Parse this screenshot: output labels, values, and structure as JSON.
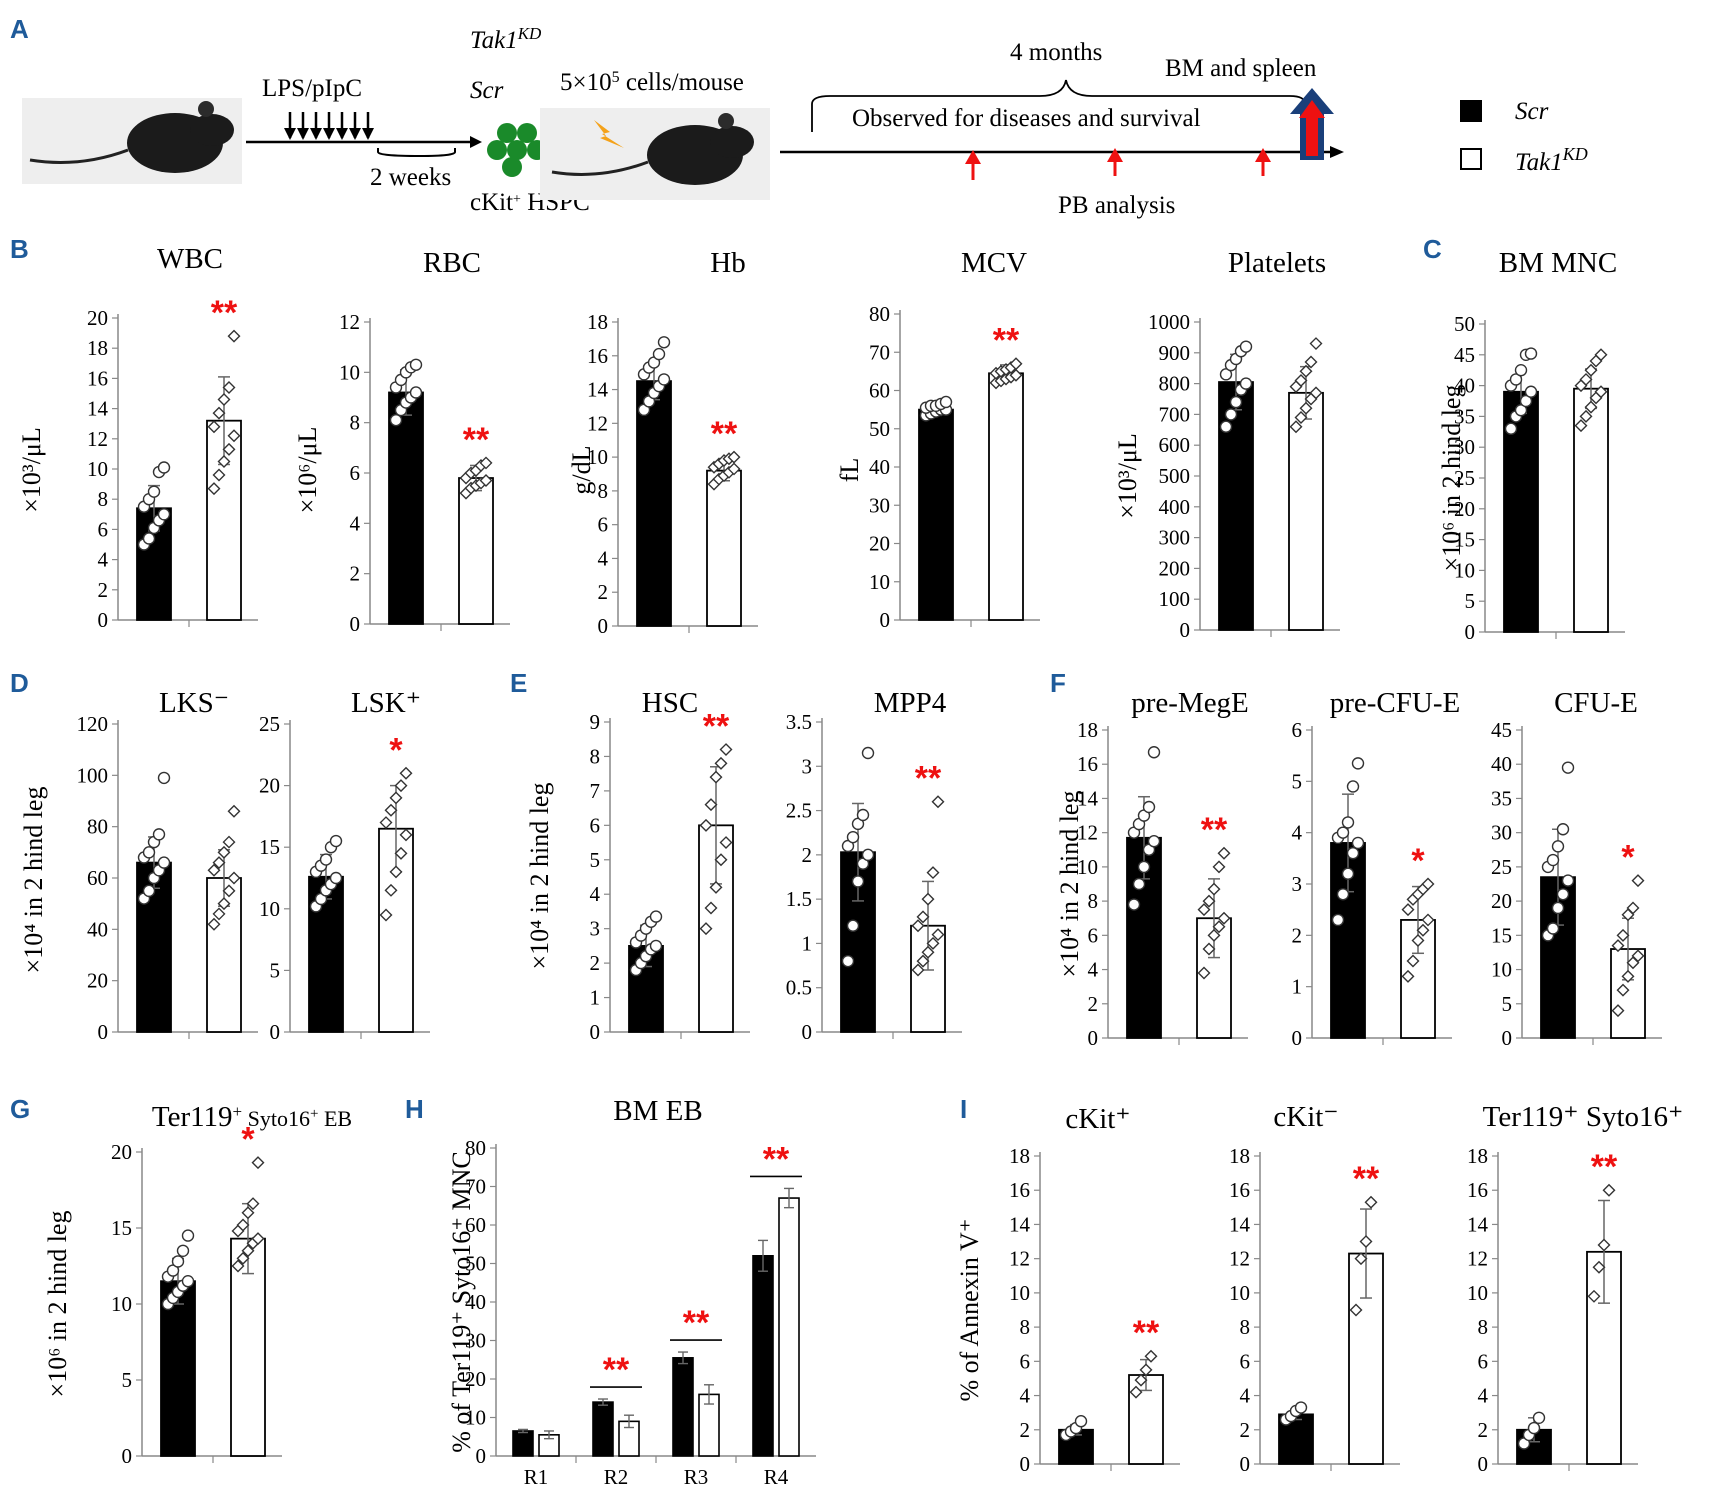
{
  "panel_labels": {
    "A": "A",
    "B": "B",
    "C": "C",
    "D": "D",
    "E": "E",
    "F": "F",
    "G": "G",
    "H": "H",
    "I": "I"
  },
  "schema": {
    "treatment": "LPS/pIpC",
    "interval": "2 weeks",
    "donor_cells": "cKit",
    "donor_cells_sup": "+",
    "donor_cells_suffix": " HSPC",
    "group_kd": "Tak1",
    "group_kd_sup": "KD",
    "group_scr": "Scr",
    "dose": "5×10",
    "dose_sup": "5",
    "dose_suffix": " cells/mouse",
    "duration": "4 months",
    "endpoint": "BM and spleen",
    "observation": "Observed for diseases and survival",
    "pb": "PB analysis"
  },
  "legend": {
    "scr": "Scr",
    "kd": "Tak1",
    "kd_sup": "KD",
    "scr_color": "#000000",
    "kd_color": "#ffffff"
  },
  "colors": {
    "significance": "#ee1111",
    "panel_label": "#1f5b9a"
  },
  "chart_data": [
    {
      "panel": "B",
      "type": "bar",
      "title": "WBC",
      "ylabel": "×10³/μL",
      "ylim": [
        0,
        20
      ],
      "ticks": [
        0,
        2,
        4,
        6,
        8,
        10,
        12,
        14,
        16,
        18,
        20
      ],
      "categories": [
        "Scr",
        "Tak1KD"
      ],
      "values": [
        7.4,
        13.2
      ],
      "errors": [
        1.5,
        2.9
      ],
      "sig": "**",
      "points": [
        [
          5,
          5.4,
          6.1,
          6.6,
          7.0,
          7.5,
          8.0,
          8.5,
          9.8,
          10.1
        ],
        [
          8.7,
          9.6,
          10.5,
          11.3,
          12.2,
          12.8,
          13.7,
          14.6,
          15.4,
          18.8
        ]
      ]
    },
    {
      "panel": "",
      "type": "bar",
      "title": "RBC",
      "ylabel": "×10⁶/μL",
      "ylim": [
        0,
        12
      ],
      "ticks": [
        0,
        2,
        4,
        6,
        8,
        10,
        12
      ],
      "categories": [
        "Scr",
        "Tak1KD"
      ],
      "values": [
        9.2,
        5.8
      ],
      "errors": [
        0.9,
        0.5
      ],
      "sig": "**",
      "points": [
        [
          8.1,
          8.5,
          8.8,
          9.0,
          9.2,
          9.4,
          9.7,
          10.0,
          10.2,
          10.3
        ],
        [
          5.2,
          5.4,
          5.5,
          5.6,
          5.7,
          5.8,
          6.0,
          6.1,
          6.3,
          6.4
        ]
      ]
    },
    {
      "panel": "",
      "type": "bar",
      "title": "Hb",
      "ylabel": "g/dL",
      "ylim": [
        0,
        18
      ],
      "ticks": [
        0,
        2,
        4,
        6,
        8,
        10,
        12,
        14,
        16,
        18
      ],
      "categories": [
        "Scr",
        "Tak1KD"
      ],
      "values": [
        14.5,
        9.2
      ],
      "errors": [
        1.1,
        0.6
      ],
      "sig": "**",
      "points": [
        [
          12.8,
          13.3,
          13.8,
          14.2,
          14.6,
          14.9,
          15.3,
          15.6,
          16.1,
          16.8
        ],
        [
          8.4,
          8.7,
          8.9,
          9.1,
          9.3,
          9.4,
          9.6,
          9.8,
          9.9,
          10.0
        ]
      ]
    },
    {
      "panel": "",
      "type": "bar",
      "title": "MCV",
      "ylabel": "fL",
      "ylim": [
        0,
        80
      ],
      "ticks": [
        0,
        10,
        20,
        30,
        40,
        50,
        60,
        70,
        80
      ],
      "categories": [
        "Scr",
        "Tak1KD"
      ],
      "values": [
        55,
        64.5
      ],
      "errors": [
        1.5,
        2.2
      ],
      "sig": "**",
      "points": [
        [
          53.5,
          54,
          54.5,
          55,
          55,
          55.5,
          56,
          56,
          56.5,
          57
        ],
        [
          62,
          62.5,
          63,
          63.5,
          64,
          64.5,
          65,
          65.5,
          66,
          67
        ]
      ]
    },
    {
      "panel": "",
      "type": "bar",
      "title": "Platelets",
      "ylabel": "×10³/μL",
      "ylim": [
        0,
        1000
      ],
      "ticks": [
        0,
        100,
        200,
        300,
        400,
        500,
        600,
        700,
        800,
        900,
        1000
      ],
      "categories": [
        "Scr",
        "Tak1KD"
      ],
      "values": [
        805,
        770
      ],
      "errors": [
        90,
        85
      ],
      "sig": "",
      "points": [
        [
          660,
          700,
          740,
          780,
          800,
          830,
          860,
          880,
          905,
          920
        ],
        [
          660,
          690,
          720,
          750,
          770,
          790,
          810,
          840,
          870,
          930
        ]
      ]
    },
    {
      "panel": "C",
      "type": "bar",
      "title": "BM MNC",
      "ylabel": "×10⁶ in 2 hind leg",
      "ylim": [
        0,
        50
      ],
      "ticks": [
        0,
        5,
        10,
        15,
        20,
        25,
        30,
        35,
        40,
        45,
        50
      ],
      "categories": [
        "Scr",
        "Tak1KD"
      ],
      "values": [
        39,
        39.5
      ],
      "errors": [
        3.5,
        3.2
      ],
      "sig": "",
      "points": [
        [
          33,
          35,
          36,
          37.5,
          39,
          40,
          41,
          42.5,
          45,
          45.2
        ],
        [
          33.5,
          35,
          36.5,
          38,
          39,
          40,
          41,
          42.5,
          44,
          45
        ]
      ]
    },
    {
      "panel": "D",
      "type": "bar",
      "title": "LKS⁻",
      "ylabel": "×10⁴ in 2 hind leg",
      "ylim": [
        0,
        120
      ],
      "ticks": [
        0,
        20,
        40,
        60,
        80,
        100,
        120
      ],
      "categories": [
        "Scr",
        "Tak1KD"
      ],
      "values": [
        66,
        60
      ],
      "errors": [
        10,
        11
      ],
      "sig": "",
      "points": [
        [
          52,
          55,
          60,
          63,
          66,
          68,
          70,
          74,
          77,
          99
        ],
        [
          42,
          46,
          50,
          55,
          60,
          63,
          66,
          70,
          74,
          86
        ]
      ]
    },
    {
      "panel": "",
      "type": "bar",
      "title": "LSK⁺",
      "ylabel": "",
      "ylim": [
        0,
        25
      ],
      "ticks": [
        0,
        5,
        10,
        15,
        20,
        25
      ],
      "categories": [
        "Scr",
        "Tak1KD"
      ],
      "values": [
        12.6,
        16.5
      ],
      "errors": [
        1.8,
        3.5
      ],
      "sig": "*",
      "points": [
        [
          10.2,
          10.8,
          11.5,
          12,
          12.5,
          13,
          13.5,
          14,
          15,
          15.5
        ],
        [
          9.5,
          11.5,
          13,
          14.5,
          16,
          17,
          18,
          19,
          20,
          21
        ]
      ]
    },
    {
      "panel": "E",
      "type": "bar",
      "title": "HSC",
      "ylabel": "×10⁴ in 2 hind leg",
      "ylim": [
        0,
        9
      ],
      "ticks": [
        0,
        1,
        2,
        3,
        4,
        5,
        6,
        7,
        8,
        9
      ],
      "categories": [
        "Scr",
        "Tak1KD"
      ],
      "values": [
        2.5,
        6
      ],
      "errors": [
        0.6,
        1.7
      ],
      "sig": "**",
      "points": [
        [
          1.8,
          2.0,
          2.2,
          2.4,
          2.5,
          2.6,
          2.8,
          3.0,
          3.2,
          3.35
        ],
        [
          3.0,
          3.6,
          4.2,
          5.0,
          5.5,
          6.0,
          6.6,
          7.4,
          7.8,
          8.2
        ]
      ]
    },
    {
      "panel": "",
      "type": "bar",
      "title": "MPP4",
      "ylabel": "",
      "ylim": [
        0,
        3.5
      ],
      "ticks": [
        0,
        0.5,
        1,
        1.5,
        2,
        2.5,
        3,
        3.5
      ],
      "categories": [
        "Scr",
        "Tak1KD"
      ],
      "values": [
        2.03,
        1.2
      ],
      "errors": [
        0.55,
        0.5
      ],
      "sig": "**",
      "points": [
        [
          0.8,
          1.2,
          1.7,
          1.9,
          2.0,
          2.1,
          2.2,
          2.35,
          2.45,
          3.15
        ],
        [
          0.7,
          0.8,
          0.9,
          1.0,
          1.1,
          1.2,
          1.3,
          1.5,
          1.8,
          2.6
        ]
      ]
    },
    {
      "panel": "F",
      "type": "bar",
      "title": "pre-MegE",
      "ylabel": "×10⁴ in 2 hind leg",
      "ylim": [
        0,
        18
      ],
      "ticks": [
        0,
        2,
        4,
        6,
        8,
        10,
        12,
        14,
        16,
        18
      ],
      "categories": [
        "Scr",
        "Tak1KD"
      ],
      "values": [
        11.7,
        7
      ],
      "errors": [
        2.4,
        2.3
      ],
      "sig": "**",
      "points": [
        [
          7.8,
          9.0,
          10.0,
          11.0,
          11.5,
          12.0,
          12.5,
          13.0,
          13.5,
          16.7
        ],
        [
          3.8,
          5.2,
          6.0,
          6.5,
          7.0,
          7.5,
          8.0,
          8.7,
          10.0,
          10.8
        ]
      ]
    },
    {
      "panel": "",
      "type": "bar",
      "title": "pre-CFU-E",
      "ylabel": "",
      "ylim": [
        0,
        6
      ],
      "ticks": [
        0,
        1,
        2,
        3,
        4,
        5,
        6
      ],
      "categories": [
        "Scr",
        "Tak1KD"
      ],
      "values": [
        3.8,
        2.3
      ],
      "errors": [
        0.95,
        0.65
      ],
      "sig": "*",
      "points": [
        [
          2.3,
          2.8,
          3.2,
          3.6,
          3.8,
          3.9,
          4.0,
          4.2,
          4.9,
          5.35
        ],
        [
          1.2,
          1.5,
          1.9,
          2.1,
          2.3,
          2.5,
          2.7,
          2.8,
          2.9,
          3.0
        ]
      ]
    },
    {
      "panel": "",
      "type": "bar",
      "title": "CFU-E",
      "ylabel": "",
      "ylim": [
        0,
        45
      ],
      "ticks": [
        0,
        5,
        10,
        15,
        20,
        25,
        30,
        35,
        40,
        45
      ],
      "categories": [
        "Scr",
        "Tak1KD"
      ],
      "values": [
        23.5,
        13
      ],
      "errors": [
        7,
        4.5
      ],
      "sig": "*",
      "points": [
        [
          15,
          16,
          19,
          21,
          23,
          25,
          26,
          28,
          30.5,
          39.5
        ],
        [
          4,
          7,
          9,
          11,
          12,
          13.5,
          15,
          18,
          19,
          23
        ]
      ]
    },
    {
      "panel": "G",
      "type": "bar",
      "title": "Ter119",
      "title_sup": "+",
      "title_suffix": " Syto16",
      "title_suffix_sup": "+",
      "title_tail": " EB",
      "ylabel": "×10⁶ in 2 hind leg",
      "ylim": [
        0,
        20
      ],
      "ticks": [
        0,
        5,
        10,
        15,
        20
      ],
      "categories": [
        "Scr",
        "Tak1KD"
      ],
      "values": [
        11.5,
        14.3
      ],
      "errors": [
        1.5,
        2.3
      ],
      "sig": "*",
      "points": [
        [
          10,
          10.4,
          10.8,
          11.2,
          11.5,
          11.8,
          12.2,
          12.8,
          13.5,
          14.5
        ],
        [
          12.5,
          13,
          13.5,
          14,
          14.3,
          14.8,
          15.2,
          16,
          16.6,
          19.3
        ]
      ]
    },
    {
      "panel": "H",
      "type": "grouped_bar",
      "title": "BM EB",
      "ylabel": "% of Ter119⁺ Syto16⁺ MNC",
      "ylim": [
        0,
        80
      ],
      "ticks": [
        0,
        10,
        20,
        30,
        40,
        50,
        60,
        70,
        80
      ],
      "categories": [
        "R1",
        "R2",
        "R3",
        "R4"
      ],
      "series": [
        {
          "name": "Scr",
          "values": [
            6.5,
            14,
            25.5,
            52
          ],
          "errors": [
            0.4,
            0.8,
            1.5,
            4
          ]
        },
        {
          "name": "Tak1KD",
          "values": [
            5.5,
            9,
            16,
            67
          ],
          "errors": [
            1,
            1.6,
            2.5,
            2.5
          ]
        }
      ],
      "sig": [
        "",
        "**",
        "**",
        "**"
      ]
    },
    {
      "panel": "I",
      "type": "bar",
      "title": "cKit⁺",
      "ylabel": "% of Annexin V⁺",
      "ylim": [
        0,
        18
      ],
      "ticks": [
        0,
        2,
        4,
        6,
        8,
        10,
        12,
        14,
        16,
        18
      ],
      "categories": [
        "Scr",
        "Tak1KD"
      ],
      "values": [
        2,
        5.2
      ],
      "errors": [
        0.3,
        0.9
      ],
      "sig": "**",
      "points": [
        [
          1.7,
          1.9,
          2.1,
          2.5
        ],
        [
          4.2,
          4.9,
          5.5,
          6.3
        ]
      ]
    },
    {
      "panel": "",
      "type": "bar",
      "title": "cKit⁻",
      "ylabel": "",
      "ylim": [
        0,
        18
      ],
      "ticks": [
        0,
        2,
        4,
        6,
        8,
        10,
        12,
        14,
        16,
        18
      ],
      "categories": [
        "Scr",
        "Tak1KD"
      ],
      "values": [
        2.9,
        12.3
      ],
      "errors": [
        0.3,
        2.6
      ],
      "sig": "**",
      "points": [
        [
          2.6,
          2.8,
          3.1,
          3.3
        ],
        [
          9.0,
          12.0,
          13.0,
          15.3
        ]
      ]
    },
    {
      "panel": "",
      "type": "bar",
      "title": "Ter119⁺ Syto16⁺",
      "ylabel": "",
      "ylim": [
        0,
        18
      ],
      "ticks": [
        0,
        2,
        4,
        6,
        8,
        10,
        12,
        14,
        16,
        18
      ],
      "categories": [
        "Scr",
        "Tak1KD"
      ],
      "values": [
        2,
        12.4
      ],
      "errors": [
        0.7,
        3
      ],
      "sig": "**",
      "points": [
        [
          1.2,
          1.7,
          2.1,
          2.7
        ],
        [
          9.8,
          11.5,
          12.8,
          16
        ]
      ]
    }
  ]
}
